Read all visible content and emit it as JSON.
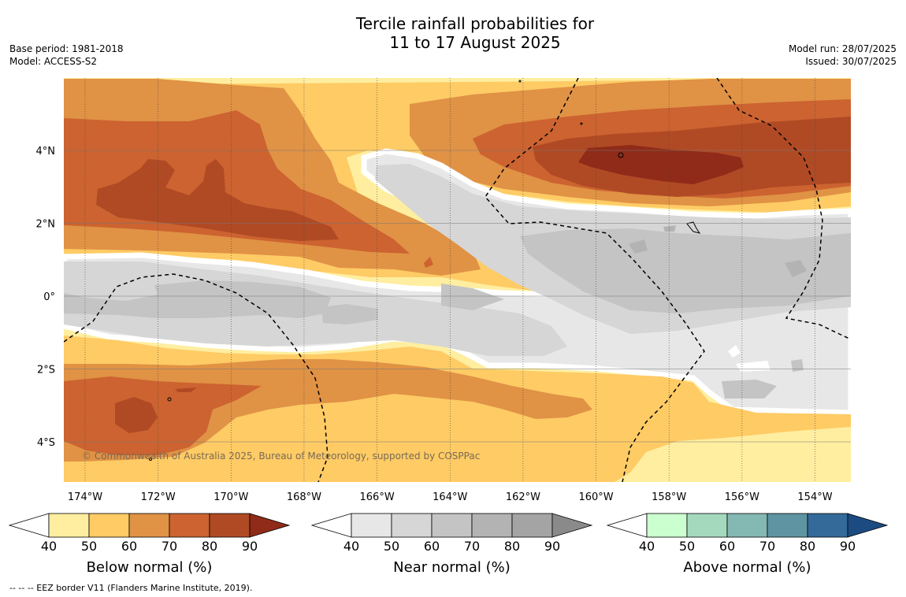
{
  "title": {
    "line1": "Tercile rainfall probabilities for",
    "line2": "11 to 17 August 2025"
  },
  "meta_left": {
    "base_period": "Base period: 1981-2018",
    "model": "Model: ACCESS-S2"
  },
  "meta_right": {
    "model_run": "Model run: 28/07/2025",
    "issued": "Issued: 30/07/2025"
  },
  "map": {
    "lon_labels": [
      "174°W",
      "172°W",
      "170°W",
      "168°W",
      "166°W",
      "164°W",
      "162°W",
      "160°W",
      "158°W",
      "156°W",
      "154°W"
    ],
    "lat_labels": [
      "4°N",
      "2°N",
      "0°",
      "2°S",
      "4°S"
    ],
    "copyright": "© Commonwealth of Australia 2025, Bureau of Meteorology, supported by COSPPac"
  },
  "colorbars": [
    {
      "title": "Below normal (%)",
      "ticks": [
        "40",
        "50",
        "60",
        "70",
        "80",
        "90"
      ],
      "colors": [
        "#ffeea0",
        "#fecb65",
        "#e09245",
        "#cc6330",
        "#b04a25",
        "#8f2b18"
      ]
    },
    {
      "title": "Near normal (%)",
      "ticks": [
        "40",
        "50",
        "60",
        "70",
        "80",
        "90"
      ],
      "colors": [
        "#e7e7e7",
        "#d6d6d6",
        "#c4c4c4",
        "#b3b3b3",
        "#a4a4a4",
        "#8a8a8a"
      ]
    },
    {
      "title": "Above normal (%)",
      "ticks": [
        "40",
        "50",
        "60",
        "70",
        "80",
        "90"
      ],
      "colors": [
        "#ccffd0",
        "#a4d9be",
        "#84b8b2",
        "#5f95a2",
        "#336a9a",
        "#1c4b82"
      ]
    }
  ],
  "footnote": "--  --  -- EEZ border V11 (Flanders Marine Institute, 2019).",
  "colors": {
    "below_40_50": "#ffeea0",
    "below_50_60": "#fecb65",
    "below_60_70": "#e09245",
    "below_70_80": "#cc6330",
    "below_80_90": "#b04a25",
    "near_40_50": "#e7e7e7",
    "near_50_60": "#d6d6d6",
    "near_60_70": "#c4c4c4"
  }
}
